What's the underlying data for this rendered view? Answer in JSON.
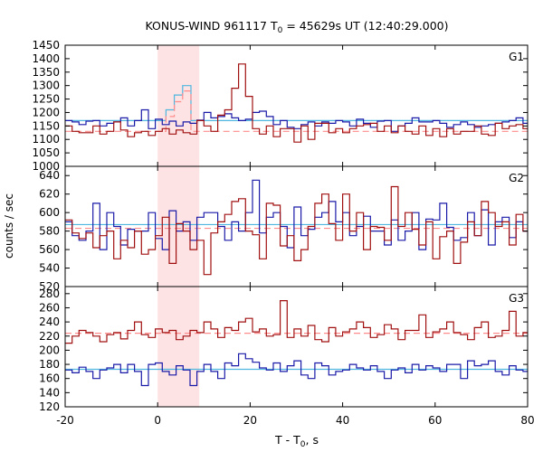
{
  "chart_data": {
    "type": "line",
    "title": "KONUS-WIND 961117 T0 = 45629s UT (12:40:29.000)",
    "title_parts": {
      "pre": "KONUS-WIND 961117 T",
      "sub": "0",
      "post": " = 45629s UT (12:40:29.000)"
    },
    "xlabel": "T - T0, s",
    "xlabel_parts": {
      "pre": "T - T",
      "sub": "0",
      "post": ", s"
    },
    "ylabel": "counts / sec",
    "xlim": [
      -20,
      80
    ],
    "x_ticks": [
      -20,
      0,
      20,
      40,
      60,
      80
    ],
    "shaded_interval": [
      0,
      9
    ],
    "colors": {
      "series_a": "#1a1aa8",
      "series_b": "#a01010",
      "fit_a": "#4fb6e0",
      "fit_b": "#ff8c8c",
      "shade": "#fde3e3"
    },
    "panels": [
      {
        "name": "G1",
        "ylim": [
          1000,
          1450
        ],
        "y_ticks": [
          1000,
          1050,
          1100,
          1150,
          1200,
          1250,
          1300,
          1350,
          1400,
          1450
        ],
        "x_start": -20,
        "bin_width": 1.5,
        "series": [
          {
            "values": [
              1170,
              1165,
              1155,
              1168,
              1170,
              1150,
              1160,
              1165,
              1180,
              1150,
              1170,
              1210,
              1140,
              1175,
              1155,
              1168,
              1150,
              1165,
              1160,
              1172,
              1200,
              1180,
              1185,
              1195,
              1180,
              1170,
              1175,
              1200,
              1205,
              1185,
              1155,
              1170,
              1145,
              1140,
              1155,
              1165,
              1150,
              1165,
              1160,
              1170,
              1165,
              1150,
              1175,
              1160,
              1145,
              1168,
              1170,
              1130,
              1150,
              1160,
              1180,
              1165,
              1165,
              1170,
              1160,
              1145,
              1155,
              1165,
              1155,
              1145,
              1150,
              1155,
              1160,
              1165,
              1170,
              1180,
              1160,
              1155
            ]
          },
          {
            "values": [
              1150,
              1130,
              1125,
              1125,
              1150,
              1120,
              1130,
              1165,
              1135,
              1110,
              1125,
              1130,
              1115,
              1130,
              1140,
              1120,
              1135,
              1125,
              1120,
              1170,
              1150,
              1130,
              1190,
              1210,
              1290,
              1380,
              1260,
              1140,
              1120,
              1150,
              1110,
              1140,
              1140,
              1090,
              1150,
              1100,
              1160,
              1160,
              1125,
              1140,
              1125,
              1140,
              1150,
              1155,
              1160,
              1130,
              1150,
              1125,
              1150,
              1130,
              1120,
              1150,
              1115,
              1140,
              1110,
              1140,
              1120,
              1130,
              1130,
              1150,
              1120,
              1115,
              1160,
              1140,
              1150,
              1155,
              1140,
              1145
            ]
          }
        ],
        "fits": [
          {
            "values": [
              1170,
              1170,
              1210,
              1265,
              1300,
              1170,
              1170
            ]
          },
          {
            "values": [
              1130,
              1130,
              1185,
              1240,
              1280,
              1130,
              1130
            ]
          }
        ]
      },
      {
        "name": "G2",
        "ylim": [
          520,
          650
        ],
        "y_ticks": [
          520,
          540,
          560,
          580,
          600,
          620,
          640
        ],
        "x_start": -20,
        "bin_width": 1.5,
        "series": [
          {
            "values": [
              590,
              575,
              570,
              580,
              610,
              560,
              600,
              585,
              565,
              582,
              580,
              580,
              600,
              572,
              560,
              602,
              580,
              590,
              570,
              595,
              600,
              600,
              585,
              570,
              590,
              580,
              600,
              635,
              578,
              595,
              600,
              585,
              562,
              606,
              575,
              582,
              595,
              600,
              612,
              590,
              600,
              575,
              585,
              596,
              580,
              580,
              565,
              592,
              570,
              580,
              600,
              560,
              593,
              592,
              610,
              584,
              570,
              573,
              600,
              575,
              603,
              565,
              590,
              595,
              573,
              590,
              580,
              590
            ]
          },
          {
            "values": [
              592,
              578,
              572,
              578,
              562,
              575,
              580,
              550,
              570,
              562,
              580,
              555,
              560,
              575,
              595,
              545,
              588,
              580,
              560,
              570,
              533,
              578,
              590,
              598,
              612,
              615,
              580,
              576,
              550,
              610,
              608,
              564,
              575,
              548,
              560,
              585,
              610,
              620,
              588,
              570,
              620,
              580,
              600,
              560,
              585,
              584,
              570,
              628,
              585,
              600,
              582,
              565,
              590,
              550,
              574,
              580,
              545,
              568,
              590,
              575,
              612,
              600,
              585,
              590,
              565,
              598,
              580,
              640
            ]
          }
        ],
        "fits": [
          {
            "values": [
              587,
              587
            ]
          },
          {
            "values": [
              583,
              583
            ]
          }
        ]
      },
      {
        "name": "G3",
        "ylim": [
          120,
          290
        ],
        "y_ticks": [
          120,
          140,
          160,
          180,
          200,
          220,
          240,
          260,
          280
        ],
        "x_start": -20,
        "bin_width": 1.5,
        "series": [
          {
            "values": [
              172,
              168,
              176,
              170,
              160,
              172,
              175,
              180,
              168,
              180,
              170,
              150,
              180,
              182,
              170,
              165,
              178,
              172,
              150,
              170,
              180,
              170,
              160,
              182,
              178,
              195,
              188,
              183,
              175,
              172,
              182,
              170,
              178,
              185,
              165,
              160,
              182,
              178,
              165,
              170,
              172,
              180,
              175,
              172,
              178,
              170,
              160,
              172,
              175,
              168,
              180,
              172,
              178,
              175,
              170,
              180,
              180,
              160,
              185,
              178,
              180,
              185,
              170,
              165,
              178,
              172,
              170,
              175
            ]
          },
          {
            "values": [
              210,
              220,
              228,
              225,
              220,
              212,
              222,
              225,
              216,
              228,
              240,
              222,
              218,
              230,
              225,
              228,
              215,
              220,
              228,
              225,
              240,
              230,
              218,
              232,
              228,
              240,
              245,
              226,
              230,
              220,
              222,
              270,
              218,
              230,
              220,
              235,
              215,
              212,
              232,
              220,
              226,
              230,
              240,
              232,
              218,
              222,
              236,
              230,
              215,
              228,
              228,
              250,
              218,
              226,
              230,
              240,
              225,
              222,
              215,
              232,
              240,
              218,
              220,
              228,
              255,
              220,
              225,
              228
            ]
          }
        ],
        "fits": [
          {
            "values": [
              173,
              173
            ]
          },
          {
            "values": [
              224,
              224
            ]
          }
        ]
      }
    ]
  }
}
